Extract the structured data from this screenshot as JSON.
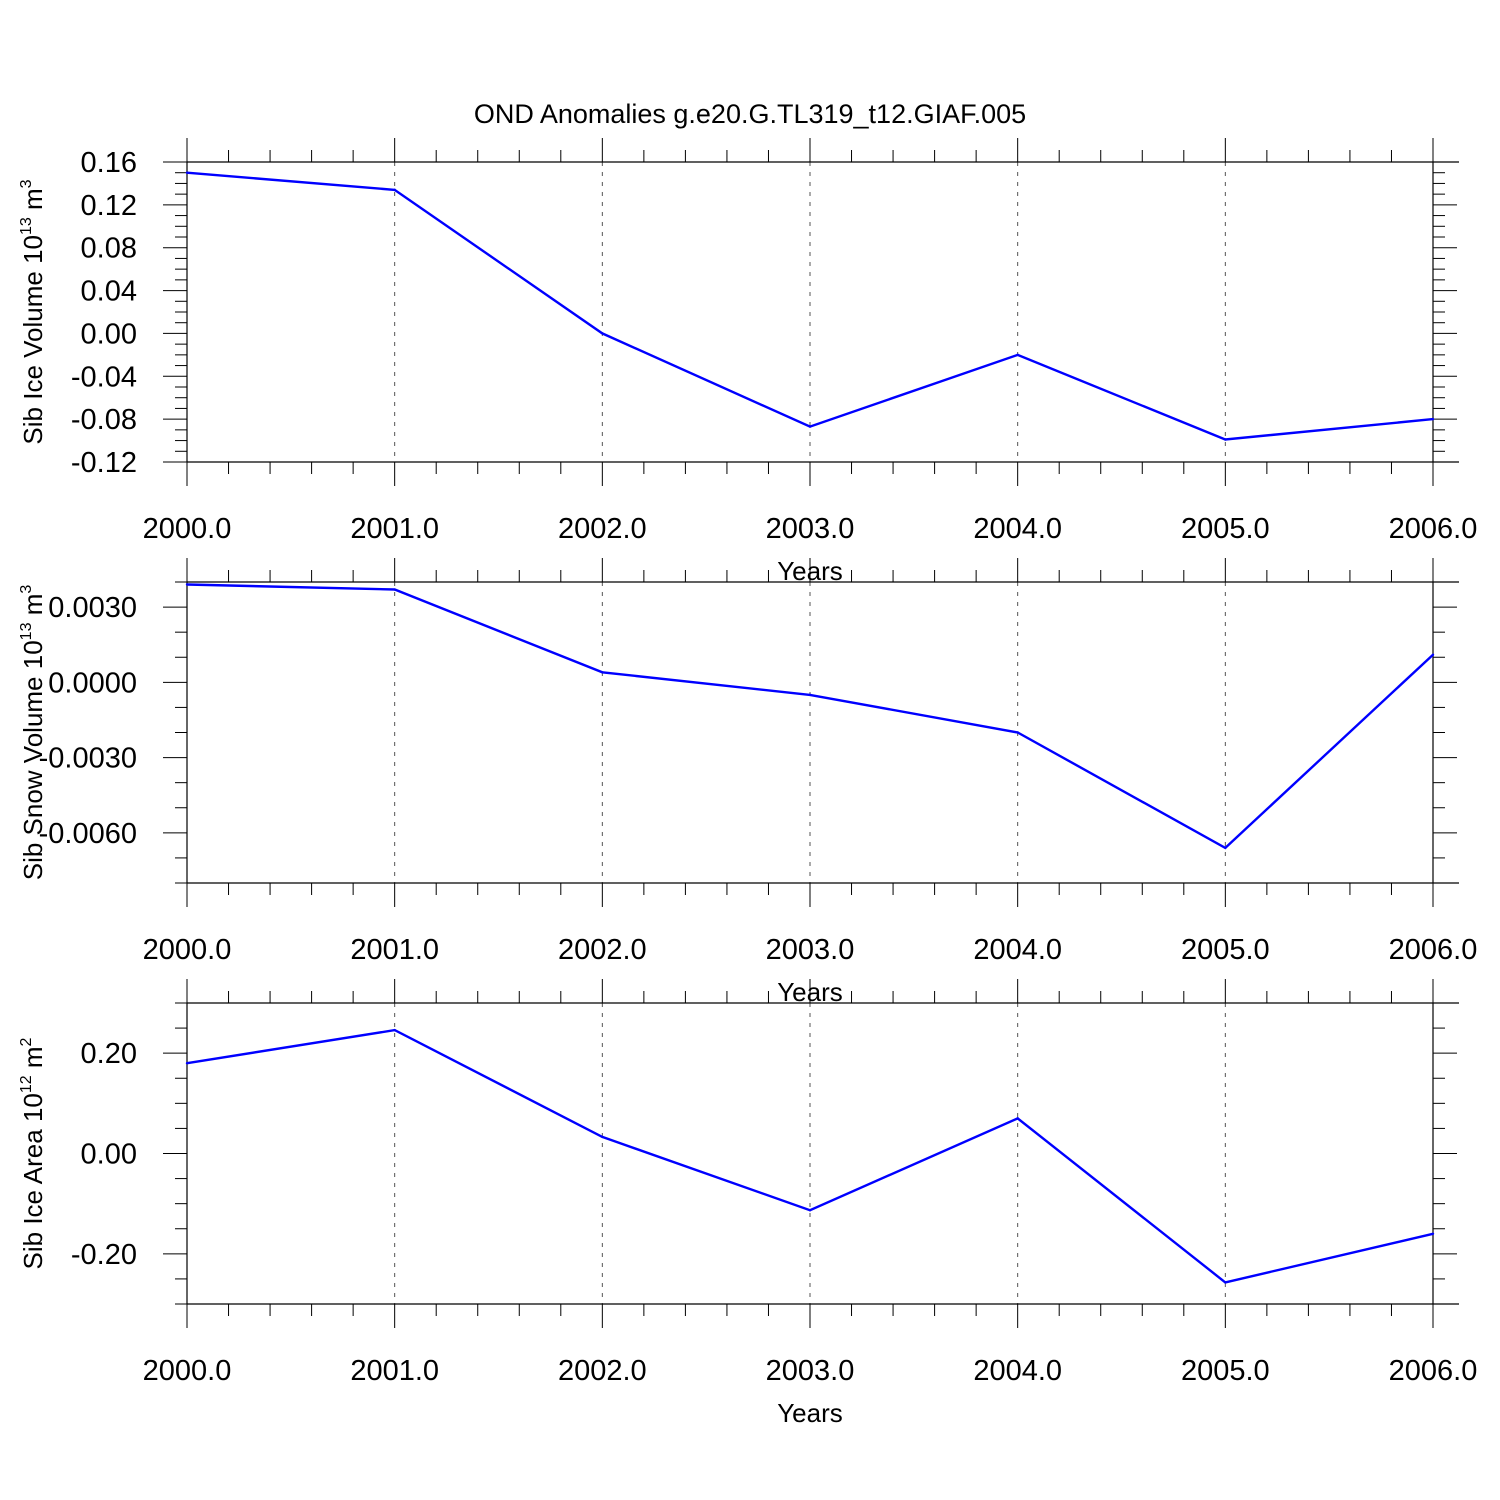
{
  "title": "OND Anomalies g.e20.G.TL319_t12.GIAF.005",
  "chart_data": [
    {
      "type": "line",
      "ylabel": {
        "main": "Sib Ice Volume 10",
        "sup": "13",
        "unit": " m",
        "unit_sup": "3"
      },
      "xlabel": "Years",
      "x": [
        2000,
        2001,
        2002,
        2003,
        2004,
        2005,
        2006
      ],
      "series": [
        {
          "values": [
            0.15,
            0.134,
            0.0,
            -0.087,
            -0.02,
            -0.099,
            -0.08
          ]
        }
      ],
      "xlim": [
        2000,
        2006
      ],
      "ylim": [
        -0.12,
        0.16
      ],
      "y_ticks": [
        0.16,
        0.12,
        0.08,
        0.04,
        0.0,
        -0.04,
        -0.08,
        -0.12
      ],
      "y_tick_labels": [
        "0.16",
        "0.12",
        "0.08",
        "0.04",
        "0.00",
        "-0.04",
        "-0.08",
        "-0.12"
      ],
      "y_minor_step": 0.01,
      "x_ticks": [
        2000,
        2001,
        2002,
        2003,
        2004,
        2005,
        2006
      ],
      "x_tick_labels": [
        "2000.0",
        "2001.0",
        "2002.0",
        "2003.0",
        "2004.0",
        "2005.0",
        "2006.0"
      ],
      "x_minor_step": 0.2,
      "line_color": "#0000ff"
    },
    {
      "type": "line",
      "ylabel": {
        "main": "Sib Snow Volume 10",
        "sup": "13",
        "unit": " m",
        "unit_sup": "3"
      },
      "xlabel": "Years",
      "x": [
        2000,
        2001,
        2002,
        2003,
        2004,
        2005,
        2006
      ],
      "series": [
        {
          "values": [
            0.0039,
            0.0037,
            0.0004,
            -0.0005,
            -0.002,
            -0.0066,
            0.0011
          ]
        }
      ],
      "xlim": [
        2000,
        2006
      ],
      "ylim": [
        -0.008,
        0.004
      ],
      "y_ticks": [
        0.003,
        0.0,
        -0.003,
        -0.006
      ],
      "y_tick_labels": [
        "0.0030",
        "0.0000",
        "-0.0030",
        "-0.0060"
      ],
      "y_minor_step": 0.001,
      "x_ticks": [
        2000,
        2001,
        2002,
        2003,
        2004,
        2005,
        2006
      ],
      "x_tick_labels": [
        "2000.0",
        "2001.0",
        "2002.0",
        "2003.0",
        "2004.0",
        "2005.0",
        "2006.0"
      ],
      "x_minor_step": 0.2,
      "line_color": "#0000ff"
    },
    {
      "type": "line",
      "ylabel": {
        "main": "Sib Ice Area 10",
        "sup": "12",
        "unit": " m",
        "unit_sup": "2"
      },
      "xlabel": "Years",
      "x": [
        2000,
        2001,
        2002,
        2003,
        2004,
        2005,
        2006
      ],
      "series": [
        {
          "values": [
            0.18,
            0.246,
            0.033,
            -0.113,
            0.07,
            -0.257,
            -0.16
          ]
        }
      ],
      "xlim": [
        2000,
        2006
      ],
      "ylim": [
        -0.3,
        0.3
      ],
      "y_ticks": [
        0.2,
        0.0,
        -0.2
      ],
      "y_tick_labels": [
        "0.20",
        "0.00",
        "-0.20"
      ],
      "y_minor_step": 0.05,
      "x_ticks": [
        2000,
        2001,
        2002,
        2003,
        2004,
        2005,
        2006
      ],
      "x_tick_labels": [
        "2000.0",
        "2001.0",
        "2002.0",
        "2003.0",
        "2004.0",
        "2005.0",
        "2006.0"
      ],
      "x_minor_step": 0.2,
      "line_color": "#0000ff"
    }
  ]
}
